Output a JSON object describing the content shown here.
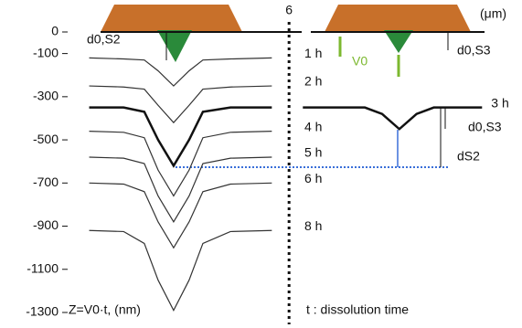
{
  "chart_data": {
    "type": "line",
    "ylim": [
      0,
      -1300
    ],
    "yticks": [
      0,
      -100,
      -300,
      -500,
      -700,
      -900,
      -1100,
      -1300
    ],
    "xlim": [
      0,
      12.6
    ],
    "xticks": [
      6
    ],
    "x_unit": "(μm)",
    "series": [
      {
        "name": "1 h",
        "color": "#333333",
        "x": [
          0.2,
          1.2,
          1.8,
          2.2,
          2.65,
          3.1,
          3.5,
          4.3,
          5.5
        ],
        "values": [
          -120,
          -125,
          -130,
          -180,
          -250,
          -180,
          -130,
          -125,
          -120
        ]
      },
      {
        "name": "2 h",
        "color": "#333333",
        "x": [
          0.2,
          1.2,
          1.8,
          2.2,
          2.65,
          3.1,
          3.5,
          4.3,
          5.5
        ],
        "values": [
          -250,
          -255,
          -265,
          -340,
          -420,
          -340,
          -265,
          -255,
          -250
        ]
      },
      {
        "name": "3 h",
        "color": "#111111",
        "x": [
          0.2,
          1.2,
          1.8,
          2.2,
          2.65,
          3.1,
          3.5,
          4.3,
          5.5,
          null,
          6.4,
          8.2,
          8.7,
          9.2,
          9.7,
          10.2,
          11.6
        ],
        "values": [
          -350,
          -350,
          -370,
          -500,
          -620,
          -500,
          -370,
          -350,
          -350,
          null,
          -350,
          -350,
          -380,
          -450,
          -380,
          -350,
          -350
        ]
      },
      {
        "name": "4 h",
        "color": "#333333",
        "x": [
          0.2,
          1.2,
          1.8,
          2.2,
          2.65,
          3.1,
          3.5,
          4.3,
          5.5
        ],
        "values": [
          -460,
          -465,
          -490,
          -640,
          -760,
          -640,
          -490,
          -465,
          -460
        ]
      },
      {
        "name": "5 h",
        "color": "#333333",
        "x": [
          0.2,
          1.2,
          1.8,
          2.2,
          2.65,
          3.1,
          3.5,
          4.3,
          5.5
        ],
        "values": [
          -580,
          -585,
          -610,
          -760,
          -880,
          -760,
          -610,
          -585,
          -580
        ]
      },
      {
        "name": "6 h",
        "color": "#333333",
        "x": [
          0.2,
          1.2,
          1.8,
          2.2,
          2.65,
          3.1,
          3.5,
          4.3,
          5.5
        ],
        "values": [
          -700,
          -705,
          -740,
          -880,
          -1000,
          -880,
          -740,
          -705,
          -700
        ]
      },
      {
        "name": "8 h",
        "color": "#333333",
        "x": [
          0.2,
          1.2,
          1.8,
          2.2,
          2.65,
          3.1,
          3.5,
          4.3,
          5.5
        ],
        "values": [
          -920,
          -925,
          -980,
          -1150,
          -1290,
          -1150,
          -980,
          -925,
          -920
        ]
      }
    ],
    "annotations": [
      "d0,S2",
      "d0,S3",
      "V0",
      "d0,S3",
      "dS2",
      "Z=V0·t, (nm)",
      "t : dissolution time"
    ]
  }
}
